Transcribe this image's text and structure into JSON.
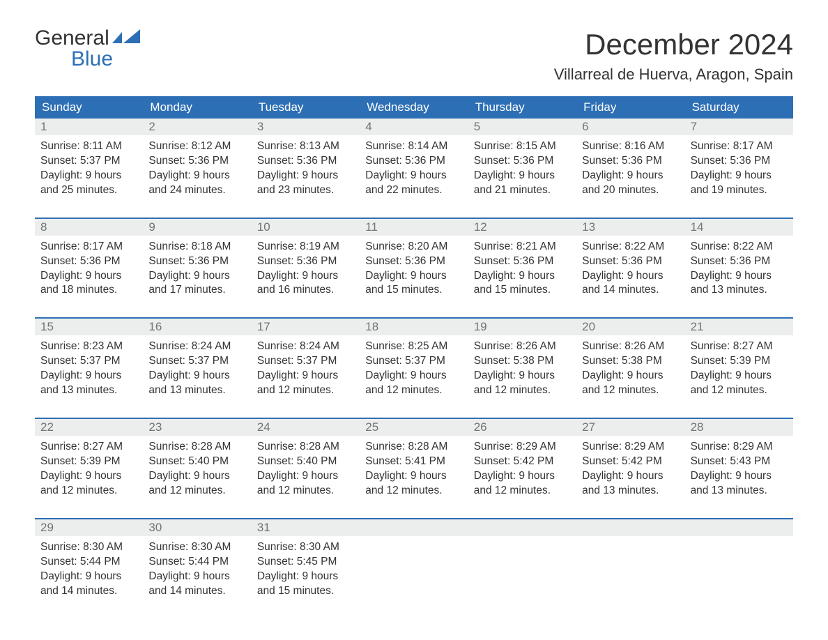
{
  "brand": {
    "part1": "General",
    "part2": "Blue",
    "flag_color": "#2d6fb5"
  },
  "title": "December 2024",
  "location": "Villarreal de Huerva, Aragon, Spain",
  "colors": {
    "header_bg": "#2d6fb5",
    "header_text": "#ffffff",
    "daynum_bg": "#eceeee",
    "daynum_text": "#6f7475",
    "body_text": "#333333",
    "week_border": "#2d6fb5",
    "page_bg": "#ffffff"
  },
  "typography": {
    "title_fontsize": 42,
    "location_fontsize": 22,
    "dayheader_fontsize": 17,
    "daynum_fontsize": 17,
    "body_fontsize": 15.5
  },
  "day_headers": [
    "Sunday",
    "Monday",
    "Tuesday",
    "Wednesday",
    "Thursday",
    "Friday",
    "Saturday"
  ],
  "weeks": [
    [
      {
        "n": "1",
        "sunrise": "Sunrise: 8:11 AM",
        "sunset": "Sunset: 5:37 PM",
        "d1": "Daylight: 9 hours",
        "d2": "and 25 minutes."
      },
      {
        "n": "2",
        "sunrise": "Sunrise: 8:12 AM",
        "sunset": "Sunset: 5:36 PM",
        "d1": "Daylight: 9 hours",
        "d2": "and 24 minutes."
      },
      {
        "n": "3",
        "sunrise": "Sunrise: 8:13 AM",
        "sunset": "Sunset: 5:36 PM",
        "d1": "Daylight: 9 hours",
        "d2": "and 23 minutes."
      },
      {
        "n": "4",
        "sunrise": "Sunrise: 8:14 AM",
        "sunset": "Sunset: 5:36 PM",
        "d1": "Daylight: 9 hours",
        "d2": "and 22 minutes."
      },
      {
        "n": "5",
        "sunrise": "Sunrise: 8:15 AM",
        "sunset": "Sunset: 5:36 PM",
        "d1": "Daylight: 9 hours",
        "d2": "and 21 minutes."
      },
      {
        "n": "6",
        "sunrise": "Sunrise: 8:16 AM",
        "sunset": "Sunset: 5:36 PM",
        "d1": "Daylight: 9 hours",
        "d2": "and 20 minutes."
      },
      {
        "n": "7",
        "sunrise": "Sunrise: 8:17 AM",
        "sunset": "Sunset: 5:36 PM",
        "d1": "Daylight: 9 hours",
        "d2": "and 19 minutes."
      }
    ],
    [
      {
        "n": "8",
        "sunrise": "Sunrise: 8:17 AM",
        "sunset": "Sunset: 5:36 PM",
        "d1": "Daylight: 9 hours",
        "d2": "and 18 minutes."
      },
      {
        "n": "9",
        "sunrise": "Sunrise: 8:18 AM",
        "sunset": "Sunset: 5:36 PM",
        "d1": "Daylight: 9 hours",
        "d2": "and 17 minutes."
      },
      {
        "n": "10",
        "sunrise": "Sunrise: 8:19 AM",
        "sunset": "Sunset: 5:36 PM",
        "d1": "Daylight: 9 hours",
        "d2": "and 16 minutes."
      },
      {
        "n": "11",
        "sunrise": "Sunrise: 8:20 AM",
        "sunset": "Sunset: 5:36 PM",
        "d1": "Daylight: 9 hours",
        "d2": "and 15 minutes."
      },
      {
        "n": "12",
        "sunrise": "Sunrise: 8:21 AM",
        "sunset": "Sunset: 5:36 PM",
        "d1": "Daylight: 9 hours",
        "d2": "and 15 minutes."
      },
      {
        "n": "13",
        "sunrise": "Sunrise: 8:22 AM",
        "sunset": "Sunset: 5:36 PM",
        "d1": "Daylight: 9 hours",
        "d2": "and 14 minutes."
      },
      {
        "n": "14",
        "sunrise": "Sunrise: 8:22 AM",
        "sunset": "Sunset: 5:36 PM",
        "d1": "Daylight: 9 hours",
        "d2": "and 13 minutes."
      }
    ],
    [
      {
        "n": "15",
        "sunrise": "Sunrise: 8:23 AM",
        "sunset": "Sunset: 5:37 PM",
        "d1": "Daylight: 9 hours",
        "d2": "and 13 minutes."
      },
      {
        "n": "16",
        "sunrise": "Sunrise: 8:24 AM",
        "sunset": "Sunset: 5:37 PM",
        "d1": "Daylight: 9 hours",
        "d2": "and 13 minutes."
      },
      {
        "n": "17",
        "sunrise": "Sunrise: 8:24 AM",
        "sunset": "Sunset: 5:37 PM",
        "d1": "Daylight: 9 hours",
        "d2": "and 12 minutes."
      },
      {
        "n": "18",
        "sunrise": "Sunrise: 8:25 AM",
        "sunset": "Sunset: 5:37 PM",
        "d1": "Daylight: 9 hours",
        "d2": "and 12 minutes."
      },
      {
        "n": "19",
        "sunrise": "Sunrise: 8:26 AM",
        "sunset": "Sunset: 5:38 PM",
        "d1": "Daylight: 9 hours",
        "d2": "and 12 minutes."
      },
      {
        "n": "20",
        "sunrise": "Sunrise: 8:26 AM",
        "sunset": "Sunset: 5:38 PM",
        "d1": "Daylight: 9 hours",
        "d2": "and 12 minutes."
      },
      {
        "n": "21",
        "sunrise": "Sunrise: 8:27 AM",
        "sunset": "Sunset: 5:39 PM",
        "d1": "Daylight: 9 hours",
        "d2": "and 12 minutes."
      }
    ],
    [
      {
        "n": "22",
        "sunrise": "Sunrise: 8:27 AM",
        "sunset": "Sunset: 5:39 PM",
        "d1": "Daylight: 9 hours",
        "d2": "and 12 minutes."
      },
      {
        "n": "23",
        "sunrise": "Sunrise: 8:28 AM",
        "sunset": "Sunset: 5:40 PM",
        "d1": "Daylight: 9 hours",
        "d2": "and 12 minutes."
      },
      {
        "n": "24",
        "sunrise": "Sunrise: 8:28 AM",
        "sunset": "Sunset: 5:40 PM",
        "d1": "Daylight: 9 hours",
        "d2": "and 12 minutes."
      },
      {
        "n": "25",
        "sunrise": "Sunrise: 8:28 AM",
        "sunset": "Sunset: 5:41 PM",
        "d1": "Daylight: 9 hours",
        "d2": "and 12 minutes."
      },
      {
        "n": "26",
        "sunrise": "Sunrise: 8:29 AM",
        "sunset": "Sunset: 5:42 PM",
        "d1": "Daylight: 9 hours",
        "d2": "and 12 minutes."
      },
      {
        "n": "27",
        "sunrise": "Sunrise: 8:29 AM",
        "sunset": "Sunset: 5:42 PM",
        "d1": "Daylight: 9 hours",
        "d2": "and 13 minutes."
      },
      {
        "n": "28",
        "sunrise": "Sunrise: 8:29 AM",
        "sunset": "Sunset: 5:43 PM",
        "d1": "Daylight: 9 hours",
        "d2": "and 13 minutes."
      }
    ],
    [
      {
        "n": "29",
        "sunrise": "Sunrise: 8:30 AM",
        "sunset": "Sunset: 5:44 PM",
        "d1": "Daylight: 9 hours",
        "d2": "and 14 minutes."
      },
      {
        "n": "30",
        "sunrise": "Sunrise: 8:30 AM",
        "sunset": "Sunset: 5:44 PM",
        "d1": "Daylight: 9 hours",
        "d2": "and 14 minutes."
      },
      {
        "n": "31",
        "sunrise": "Sunrise: 8:30 AM",
        "sunset": "Sunset: 5:45 PM",
        "d1": "Daylight: 9 hours",
        "d2": "and 15 minutes."
      },
      {
        "n": "",
        "sunrise": "",
        "sunset": "",
        "d1": "",
        "d2": ""
      },
      {
        "n": "",
        "sunrise": "",
        "sunset": "",
        "d1": "",
        "d2": ""
      },
      {
        "n": "",
        "sunrise": "",
        "sunset": "",
        "d1": "",
        "d2": ""
      },
      {
        "n": "",
        "sunrise": "",
        "sunset": "",
        "d1": "",
        "d2": ""
      }
    ]
  ]
}
